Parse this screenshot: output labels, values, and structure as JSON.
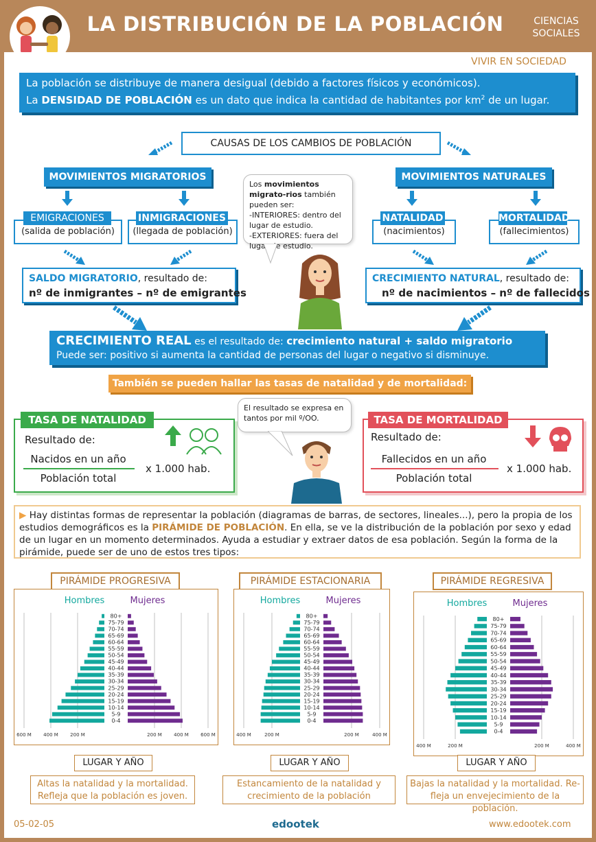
{
  "header": {
    "title": "LA DISTRIBUCIÓN DE LA POBLACIÓN",
    "subject_line1": "CIENCIAS",
    "subject_line2": "SOCIALES",
    "section": "VIVIR EN SOCIEDAD"
  },
  "intro": {
    "line1": "La población se distribuye de manera desigual (debido a factores físicos y económicos).",
    "line2_pre": "La ",
    "line2_bold": "DENSIDAD DE POBLACIÓN",
    "line2_post": " es un dato que indica la cantidad de habitantes por km",
    "line2_sup": "2",
    "line2_end": " de un lugar."
  },
  "causes": {
    "title": "CAUSAS DE LOS CAMBIOS DE POBLACIÓN",
    "migratory": "MOVIMIENTOS MIGRATORIOS",
    "natural": "MOVIMIENTOS NATURALES",
    "emig_title": "EMIGRACIONES",
    "emig_desc": "(salida de población)",
    "inmig_title": "INMIGRACIONES",
    "inmig_desc": "(llegada de población)",
    "nat_title": "NATALIDAD",
    "nat_desc": "(nacimientos)",
    "mort_title": "MORTALIDAD",
    "mort_desc": "(fallecimientos)",
    "saldo_bold": "SALDO MIGRATORIO",
    "saldo_rest": ", resultado de:",
    "saldo_formula": "nº de inmigrantes – nº de emigrantes",
    "crec_bold": "CRECIMIENTO NATURAL",
    "crec_rest": ", resultado de:",
    "crec_formula": "nº de nacimientos – nº de fallecidos"
  },
  "bubble1": {
    "t1": "Los ",
    "t2": "movimientos migrato-rios",
    "t3": " también pueden ser:",
    "t4": "-INTERIORES: dentro del lugar de estudio.",
    "t5": "-EXTERIORES: fuera del lugar de estudio."
  },
  "real": {
    "bold1": "CRECIMIENTO REAL",
    "mid": " es el resultado de: ",
    "bold2": "crecimiento natural + saldo migratorio",
    "line2": "Puede ser: positivo si aumenta la cantidad de personas del lugar o negativo si disminuye."
  },
  "tasas_banner": "También se pueden hallar las tasas de natalidad y de mortalidad:",
  "natalidad": {
    "title": "TASA DE NATALIDAD",
    "result": "Resultado de:",
    "num": "Nacidos en un año",
    "den": "Población total",
    "mult": "x 1.000 hab."
  },
  "mortalidad": {
    "title": "TASA DE MORTALIDAD",
    "result": "Resultado de:",
    "num": "Fallecidos en un año",
    "den": "Población total",
    "mult": "x 1.000 hab."
  },
  "bubble2": "El resultado se expresa en tantos por mil º/OO.",
  "paragraph": {
    "p1": "Hay distintas formas de representar la población (diagramas de barras, de sectores, lineales...), pero la propia de los estudios demográficos es la ",
    "bold": "PIRÁMIDE DE POBLACIÓN",
    "p2": ". En ella, se ve la distribución de la población por sexo y edad de un lugar en un momento determinados. Ayuda a estudiar y extraer datos de esa población. Según la forma de la pirámide, puede ser de uno de estos tres tipos:"
  },
  "legend": {
    "men": "Hombres",
    "women": "Mujeres"
  },
  "ages": [
    "80+",
    "75-79",
    "70-74",
    "65-69",
    "60-64",
    "55-59",
    "50-54",
    "45-49",
    "40-44",
    "35-39",
    "30-34",
    "25-29",
    "20-24",
    "15-19",
    "10-14",
    "5-9",
    "0-4"
  ],
  "pyramids": [
    {
      "title": "PIRÁMIDE PROGRESIVA",
      "place": "LUGAR Y AÑO",
      "desc1": "Altas la natalidad y la mortalidad.",
      "desc2": "Refleja que la población es joven.",
      "axis_left": [
        "600 M",
        "400 M",
        "200 M"
      ],
      "axis_right": [
        "200 M",
        "400 M",
        "600 M"
      ],
      "scale_max": 600,
      "men": [
        20,
        40,
        55,
        70,
        85,
        110,
        125,
        150,
        180,
        200,
        220,
        250,
        290,
        320,
        350,
        390,
        410
      ],
      "women": [
        25,
        45,
        60,
        75,
        90,
        110,
        125,
        145,
        175,
        195,
        220,
        250,
        290,
        320,
        350,
        390,
        410
      ]
    },
    {
      "title": "PIRÁMIDE ESTACIONARIA",
      "place": "LUGAR Y AÑO",
      "desc1": "Estancamiento de la natalidad y",
      "desc2": "crecimiento de la población",
      "axis_left": [
        "400 M",
        "200 M"
      ],
      "axis_right": [
        "200 M",
        "400 M"
      ],
      "scale_max": 400,
      "men": [
        25,
        50,
        75,
        100,
        120,
        150,
        170,
        200,
        215,
        230,
        245,
        255,
        260,
        270,
        275,
        280,
        280
      ],
      "women": [
        30,
        55,
        80,
        110,
        130,
        160,
        180,
        205,
        220,
        235,
        245,
        260,
        265,
        270,
        275,
        280,
        280
      ]
    },
    {
      "title": "PIRÁMIDE REGRESIVA",
      "place": "LUGAR Y AÑO",
      "desc1": "Bajas la natalidad y la mortalidad. Re-",
      "desc2": "fleja un envejecimiento de la población.",
      "axis_left": [
        "400 M",
        "200 M"
      ],
      "axis_right": [
        "200 M",
        "400 M"
      ],
      "scale_max": 400,
      "men": [
        60,
        80,
        100,
        120,
        140,
        160,
        180,
        200,
        230,
        250,
        260,
        245,
        230,
        215,
        200,
        185,
        170
      ],
      "women": [
        65,
        90,
        110,
        130,
        150,
        170,
        190,
        210,
        240,
        260,
        270,
        260,
        240,
        220,
        200,
        185,
        170
      ]
    }
  ],
  "footer": {
    "code": "05-02-05",
    "brand": "edootek",
    "url": "www.edootek.com"
  },
  "colors": {
    "blue": "#1d8ecf",
    "green": "#3aaa4a",
    "red": "#e2505a",
    "orange": "#f0a345",
    "men": "#13a89e",
    "women": "#6f2c8f",
    "frame": "#b8875a"
  }
}
